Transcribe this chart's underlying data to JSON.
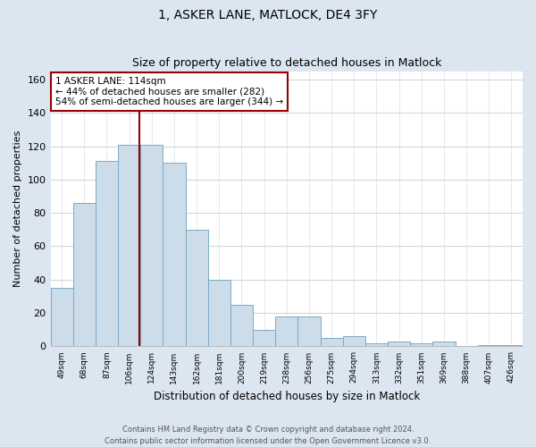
{
  "title1": "1, ASKER LANE, MATLOCK, DE4 3FY",
  "title2": "Size of property relative to detached houses in Matlock",
  "xlabel": "Distribution of detached houses by size in Matlock",
  "ylabel": "Number of detached properties",
  "categories": [
    "49sqm",
    "68sqm",
    "87sqm",
    "106sqm",
    "124sqm",
    "143sqm",
    "162sqm",
    "181sqm",
    "200sqm",
    "219sqm",
    "238sqm",
    "256sqm",
    "275sqm",
    "294sqm",
    "313sqm",
    "332sqm",
    "351sqm",
    "369sqm",
    "388sqm",
    "407sqm",
    "426sqm"
  ],
  "values": [
    35,
    86,
    111,
    121,
    121,
    110,
    70,
    40,
    25,
    10,
    18,
    18,
    5,
    6,
    2,
    3,
    2,
    3,
    0,
    1,
    1
  ],
  "bar_color": "#ccdce8",
  "bar_edge_color": "#7aaac8",
  "vline_x_index": 3.5,
  "vline_color": "#990000",
  "annotation_text": "1 ASKER LANE: 114sqm\n← 44% of detached houses are smaller (282)\n54% of semi-detached houses are larger (344) →",
  "annotation_box_color": "#990000",
  "ylim": [
    0,
    165
  ],
  "yticks": [
    0,
    20,
    40,
    60,
    80,
    100,
    120,
    140,
    160
  ],
  "footer1": "Contains HM Land Registry data © Crown copyright and database right 2024.",
  "footer2": "Contains public sector information licensed under the Open Government Licence v3.0.",
  "fig_bg_color": "#dce6f0",
  "plot_bg_color": "#ffffff"
}
